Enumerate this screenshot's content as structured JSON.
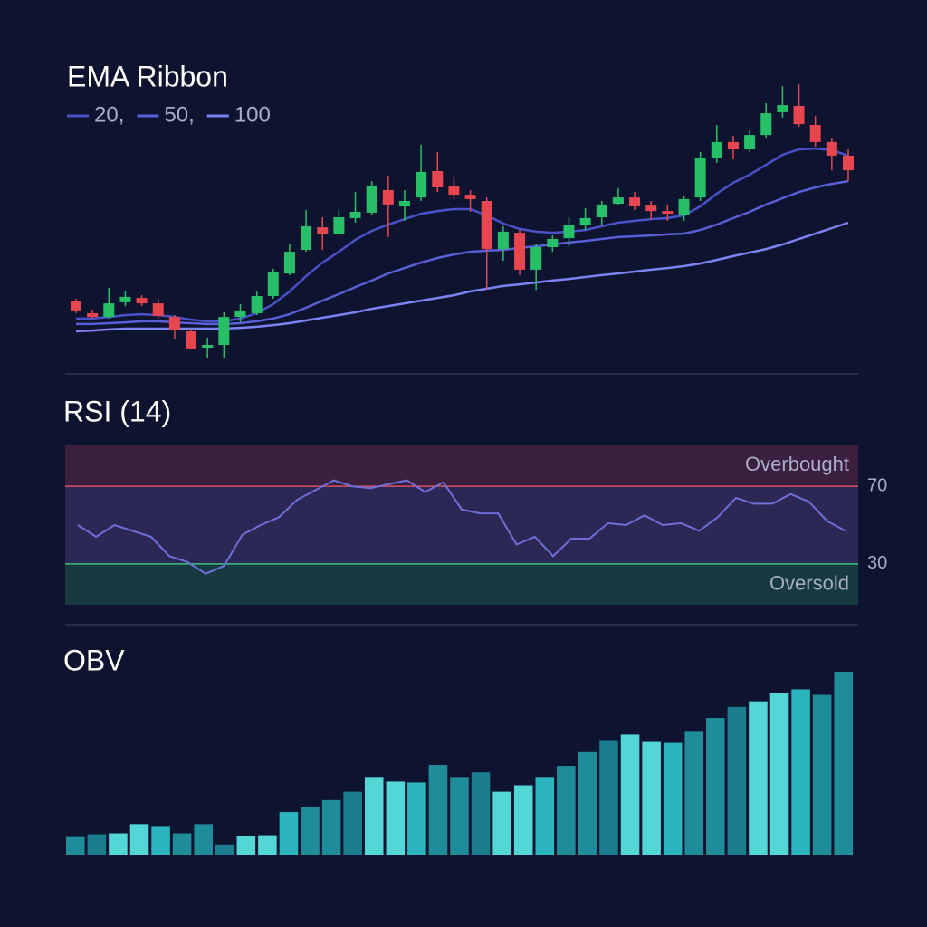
{
  "chart_data": [
    {
      "type": "candlestick",
      "title": "EMA Ribbon",
      "ylim": [
        0,
        110
      ],
      "up_color": "#27c068",
      "down_color": "#e8464f",
      "open": [
        29,
        24.7,
        23.3,
        28.7,
        30.3,
        28.3,
        23.3,
        18,
        12,
        13,
        23.3,
        24.7,
        31,
        39.3,
        48,
        56.3,
        54,
        59.7,
        61.7,
        70,
        64,
        67.3,
        77,
        71.3,
        68.3,
        66,
        48.3,
        54.3,
        40.7,
        49,
        52.3,
        57.3,
        60,
        65,
        67.3,
        64.3,
        62.3,
        61,
        67.3,
        81.7,
        87.7,
        85,
        90.3,
        98.7,
        101,
        94,
        87.7,
        82.7
      ],
      "high": [
        30,
        26,
        34,
        32.7,
        31.3,
        30,
        24,
        19,
        15.7,
        25,
        28,
        32.7,
        41,
        50,
        62.7,
        60,
        62.7,
        69.3,
        73.3,
        75.3,
        70,
        86.7,
        84,
        74.7,
        70,
        67.3,
        56.7,
        55.3,
        50,
        53.3,
        60,
        63.3,
        66,
        70.7,
        69.3,
        66,
        64.7,
        68,
        84,
        94,
        90,
        92,
        102,
        108.3,
        109,
        97.3,
        89.3,
        85
      ],
      "low": [
        24.7,
        22.7,
        22.7,
        27.3,
        27.3,
        22.7,
        15,
        11.3,
        8,
        8.3,
        21.3,
        24,
        30,
        38.7,
        47.3,
        48,
        53.3,
        58,
        60.7,
        52.7,
        58.7,
        66,
        69.3,
        66.7,
        62,
        33.3,
        44,
        38.7,
        33.3,
        47.3,
        49.3,
        55.3,
        57.3,
        64.7,
        62.7,
        59.3,
        58.7,
        58.7,
        66,
        80,
        81.3,
        84,
        89.3,
        96.7,
        93.3,
        86,
        77.3,
        73.3
      ],
      "close": [
        25.7,
        23.3,
        28.3,
        30.7,
        28.3,
        23.7,
        18.7,
        11.7,
        13,
        23.3,
        25.7,
        31,
        39.7,
        47.3,
        56.7,
        53.7,
        60,
        62,
        71.7,
        64.7,
        66,
        76.7,
        71,
        68.3,
        66.7,
        48.3,
        54.7,
        40.7,
        49,
        52,
        57.3,
        59.7,
        64.7,
        67.3,
        64,
        62.3,
        61.3,
        66.7,
        82,
        87.7,
        85,
        90.3,
        98.3,
        101.3,
        94.3,
        87.7,
        82.7,
        77.3
      ],
      "series": [
        {
          "name": "20,",
          "color": "#4a52c8",
          "values": [
            22.7,
            22.7,
            23.3,
            24,
            24.3,
            24,
            23.3,
            22.3,
            21.7,
            21.7,
            22.7,
            24.7,
            28,
            32.7,
            38.3,
            43.3,
            47.3,
            51.7,
            55,
            57.3,
            59.3,
            61.3,
            62.3,
            63,
            63,
            60.7,
            57.7,
            55.7,
            54.7,
            54.3,
            54.7,
            55.3,
            56.7,
            58,
            58.7,
            59.3,
            59.7,
            60.7,
            64,
            68.7,
            72.7,
            75.7,
            79.3,
            83,
            85,
            85.3,
            84.7,
            82.7
          ]
        },
        {
          "name": "50,",
          "color": "#5a5fd8",
          "values": [
            20.7,
            20.7,
            21,
            21.3,
            21.7,
            21.7,
            21.3,
            21,
            20.7,
            20.7,
            21,
            21.7,
            22.7,
            24.3,
            26.7,
            29.3,
            31.7,
            34.3,
            36.7,
            39.3,
            41.3,
            43.3,
            45,
            46.3,
            47.3,
            47.7,
            48,
            48.7,
            49.3,
            50,
            50.7,
            51.3,
            52,
            52.7,
            53,
            53.3,
            53.7,
            54,
            55.3,
            57.3,
            59.7,
            62,
            64.7,
            67,
            69.3,
            71,
            72.3,
            73.3
          ]
        },
        {
          "name": "100",
          "color": "#7c82f2",
          "values": [
            18,
            18.3,
            18.7,
            19,
            19,
            19,
            19,
            19,
            19,
            19,
            19.3,
            19.7,
            20.3,
            21,
            22,
            23,
            24,
            25,
            26.3,
            27.3,
            28.3,
            29.3,
            30.3,
            31.3,
            32.7,
            33.7,
            34.7,
            35.3,
            36,
            36.7,
            37.3,
            38,
            38.7,
            39.3,
            40,
            40.7,
            41.3,
            42,
            43,
            44.3,
            45.7,
            47,
            48.3,
            50,
            52,
            54,
            56,
            58
          ]
        }
      ]
    },
    {
      "type": "line",
      "title": "RSI (14)",
      "color": "#6e70d8",
      "ylim": [
        9,
        91
      ],
      "yticks": [
        70,
        30
      ],
      "annotations": [
        "Overbought",
        "Oversold"
      ],
      "values": [
        50,
        44,
        50,
        47,
        44,
        34,
        31,
        25,
        29,
        45,
        50,
        54,
        63,
        68,
        73,
        70,
        69,
        71,
        73,
        67,
        72,
        58,
        56,
        56,
        40,
        44,
        34,
        43,
        43,
        51,
        50,
        55,
        50,
        51,
        47,
        54,
        64,
        61,
        61,
        66,
        62,
        52,
        47
      ]
    },
    {
      "type": "bar",
      "title": "OBV",
      "ylim": [
        0,
        200
      ],
      "palette": [
        "#1f8c9a",
        "#2cb4bf",
        "#52d6d6",
        "#1b7d8d"
      ],
      "values": [
        19,
        22,
        23,
        33,
        31,
        23,
        33,
        11,
        20,
        21,
        46,
        52,
        59,
        68,
        84,
        79,
        78,
        97,
        84,
        89,
        68,
        75,
        84,
        96,
        111,
        124,
        130,
        122,
        121,
        133,
        148,
        160,
        166,
        175,
        179,
        173,
        198
      ]
    }
  ]
}
